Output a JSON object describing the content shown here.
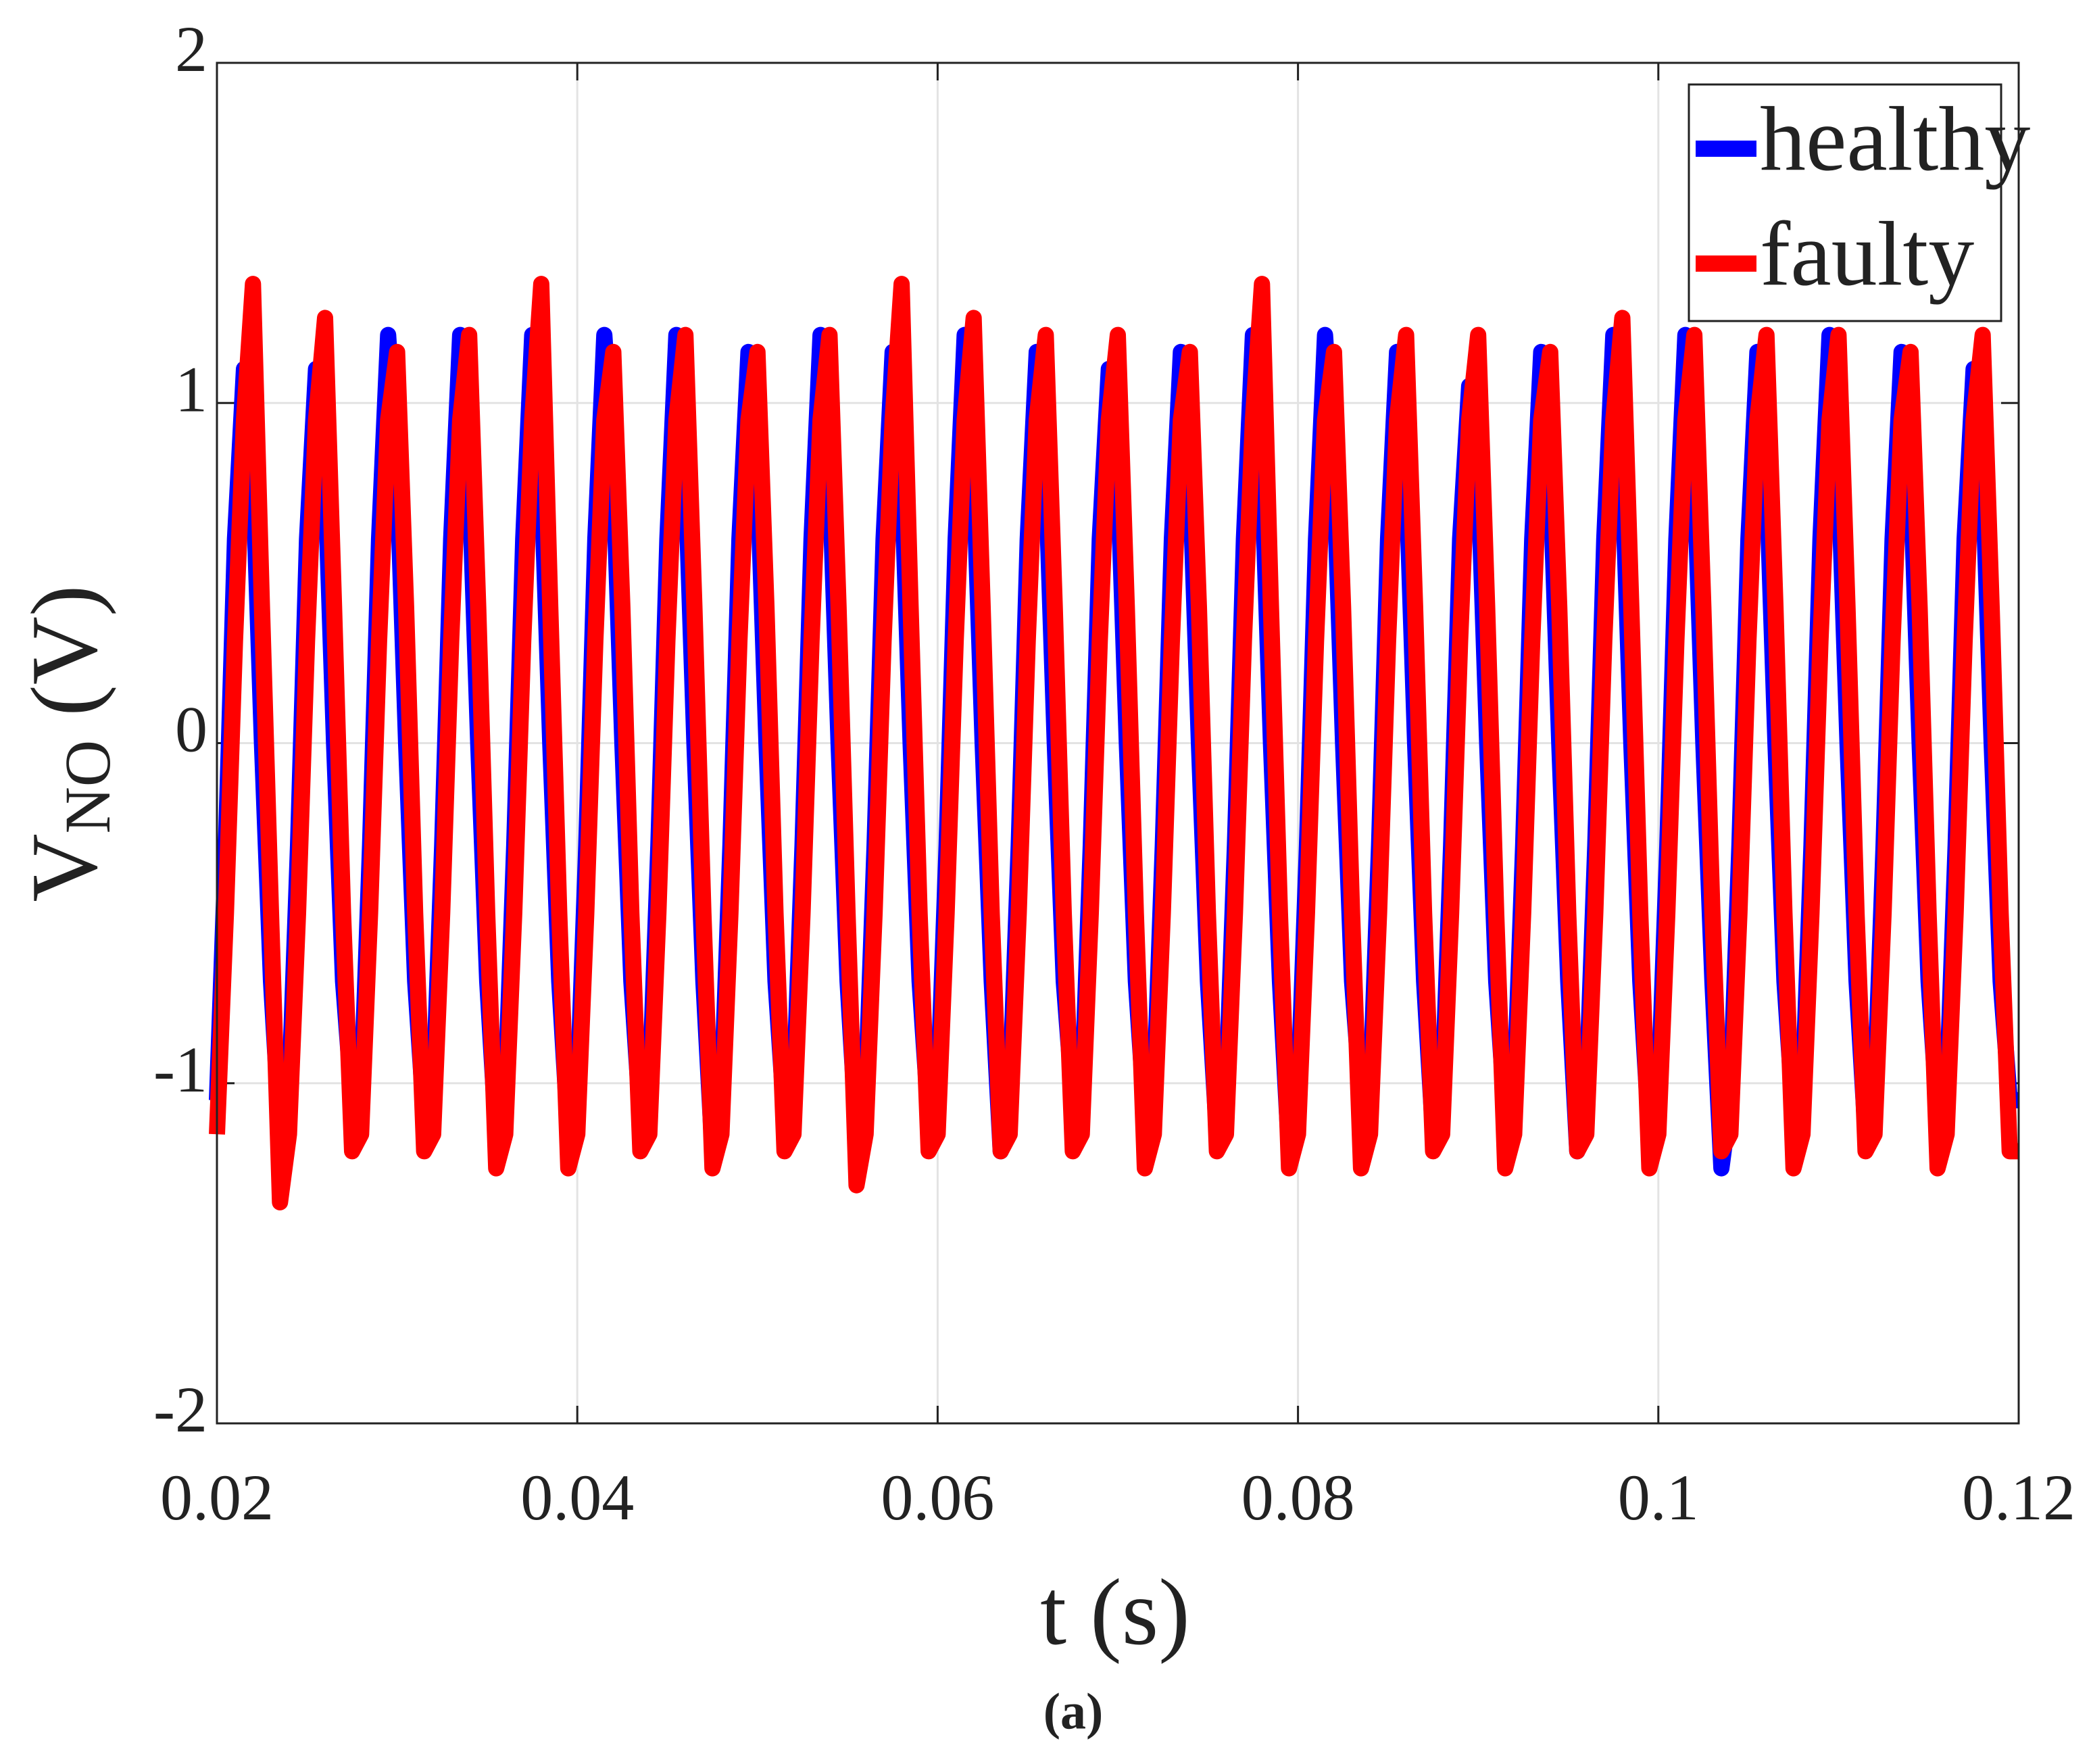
{
  "chart_data": {
    "type": "line",
    "xlabel": "t (s)",
    "ylabel": [
      "V",
      "NO",
      " (V)"
    ],
    "caption": "(a)",
    "xlim": [
      0.02,
      0.12
    ],
    "xticks": [
      0.02,
      0.04,
      0.06,
      0.08,
      0.1,
      0.12
    ],
    "ylim": [
      -2,
      2
    ],
    "yticks": [
      -2,
      -1,
      0,
      1,
      2
    ],
    "grid": true,
    "legend": "upper right",
    "x": [
      0.02,
      0.0205,
      0.021,
      0.0215,
      0.022,
      0.0225,
      0.023,
      0.0235,
      0.024,
      0.0245,
      0.025,
      0.0255,
      0.026,
      0.0265,
      0.027,
      0.0275,
      0.028,
      0.0285,
      0.029,
      0.0295,
      0.03,
      0.0305,
      0.031,
      0.0315,
      0.032,
      0.0325,
      0.033,
      0.0335,
      0.034,
      0.0345,
      0.035,
      0.0355,
      0.036,
      0.0365,
      0.037,
      0.0375,
      0.038,
      0.0385,
      0.039,
      0.0395,
      0.04,
      0.0405,
      0.041,
      0.0415,
      0.042,
      0.0425,
      0.043,
      0.0435,
      0.044,
      0.0445,
      0.045,
      0.0455,
      0.046,
      0.0465,
      0.047,
      0.0475,
      0.048,
      0.0485,
      0.049,
      0.0495,
      0.05,
      0.0505,
      0.051,
      0.0515,
      0.052,
      0.0525,
      0.053,
      0.0535,
      0.054,
      0.0545,
      0.055,
      0.0555,
      0.056,
      0.0565,
      0.057,
      0.0575,
      0.058,
      0.0585,
      0.059,
      0.0595,
      0.06,
      0.0605,
      0.061,
      0.0615,
      0.062,
      0.0625,
      0.063,
      0.0635,
      0.064,
      0.0645,
      0.065,
      0.0655,
      0.066,
      0.0665,
      0.067,
      0.0675,
      0.068,
      0.0685,
      0.069,
      0.0695,
      0.07,
      0.0705,
      0.071,
      0.0715,
      0.072,
      0.0725,
      0.073,
      0.0735,
      0.074,
      0.0745,
      0.075,
      0.0755,
      0.076,
      0.0765,
      0.077,
      0.0775,
      0.078,
      0.0785,
      0.079,
      0.0795,
      0.08,
      0.0805,
      0.081,
      0.0815,
      0.082,
      0.0825,
      0.083,
      0.0835,
      0.084,
      0.0845,
      0.085,
      0.0855,
      0.086,
      0.0865,
      0.087,
      0.0875,
      0.088,
      0.0885,
      0.089,
      0.0895,
      0.09,
      0.0905,
      0.091,
      0.0915,
      0.092,
      0.0925,
      0.093,
      0.0935,
      0.094,
      0.0945,
      0.095,
      0.0955,
      0.096,
      0.0965,
      0.097,
      0.0975,
      0.098,
      0.0985,
      0.099,
      0.0995,
      0.1,
      0.1005,
      0.101,
      0.1015,
      0.102,
      0.1025,
      0.103,
      0.1035,
      0.104,
      0.1045,
      0.105,
      0.1055,
      0.106,
      0.1065,
      0.107,
      0.1075,
      0.108,
      0.1085,
      0.109,
      0.1095,
      0.11,
      0.1105,
      0.111,
      0.1115,
      0.112,
      0.1125,
      0.113,
      0.1135,
      0.114,
      0.1145,
      0.115,
      0.1155,
      0.116,
      0.1165,
      0.117,
      0.1175,
      0.118,
      0.1185,
      0.119,
      0.1195,
      0.12
    ],
    "series": [
      {
        "name": "healthy",
        "color": "#0000ff",
        "values": [
          -1.05,
          -0.3,
          0.6,
          1.1,
          0.8,
          0,
          -0.7,
          -1.15,
          -1.05,
          -0.3,
          0.6,
          1.1,
          0.8,
          0,
          -0.7,
          -1.05,
          -1.05,
          -0.3,
          0.6,
          1.2,
          0.8,
          0,
          -0.7,
          -1.1,
          -1.05,
          -0.3,
          0.6,
          1.2,
          0.8,
          0,
          -0.7,
          -1.15,
          -1.05,
          -0.3,
          0.6,
          1.2,
          0.8,
          0,
          -0.7,
          -1.15,
          -1.05,
          -0.3,
          0.6,
          1.2,
          0.8,
          0,
          -0.7,
          -1.1,
          -1.05,
          -0.3,
          0.6,
          1.2,
          0.8,
          0,
          -0.7,
          -1.2,
          -1.05,
          -0.3,
          0.6,
          1.15,
          0.8,
          0,
          -0.7,
          -1.1,
          -1.05,
          -0.3,
          0.6,
          1.2,
          0.8,
          0,
          -0.7,
          -1.15,
          -1.05,
          -0.3,
          0.6,
          1.15,
          0.8,
          0,
          -0.7,
          -1.1,
          -1.05,
          -0.3,
          0.6,
          1.2,
          0.8,
          0,
          -0.7,
          -1.2,
          -1.05,
          -0.3,
          0.6,
          1.15,
          0.8,
          0,
          -0.7,
          -1.05,
          -1.05,
          -0.3,
          0.6,
          1.1,
          0.8,
          0,
          -0.7,
          -1.1,
          -1.05,
          -0.3,
          0.6,
          1.15,
          0.8,
          0,
          -0.7,
          -1.15,
          -1.05,
          -0.3,
          0.6,
          1.2,
          0.8,
          0,
          -0.7,
          -1.2,
          -1.05,
          -0.3,
          0.6,
          1.2,
          0.8,
          0,
          -0.7,
          -1.05,
          -1.05,
          -0.3,
          0.6,
          1.15,
          0.8,
          0,
          -0.7,
          -1.15,
          -1.05,
          -0.3,
          0.6,
          1.05,
          0.8,
          0,
          -0.7,
          -1.1,
          -1.05,
          -0.3,
          0.6,
          1.15,
          0.8,
          0,
          -0.7,
          -1.2,
          -1.05,
          -0.3,
          0.6,
          1.2,
          0.8,
          0,
          -0.7,
          -1.15,
          -1.05,
          -0.3,
          0.6,
          1.2,
          0.8,
          0,
          -0.7,
          -1.25,
          -1.05,
          -0.3,
          0.6,
          1.15,
          0.8,
          0,
          -0.7,
          -1.1,
          -1.05,
          -0.3,
          0.6,
          1.2,
          0.8,
          0,
          -0.7,
          -1.15,
          -1.05,
          -0.3,
          0.6,
          1.15,
          0.8,
          0,
          -0.7,
          -1.1,
          -1.05,
          -0.3,
          0.6,
          1.1,
          0.8,
          0,
          -0.7,
          -1.05,
          -1.05
        ]
      },
      {
        "name": "faulty",
        "color": "#ff0000",
        "values": [
          -1.15,
          -0.5,
          0.3,
          0.95,
          1.35,
          0.4,
          -0.5,
          -1.35,
          -1.15,
          -0.5,
          0.3,
          0.95,
          1.25,
          0.4,
          -0.5,
          -1.2,
          -1.15,
          -0.5,
          0.3,
          0.95,
          1.15,
          0.4,
          -0.5,
          -1.2,
          -1.15,
          -0.5,
          0.3,
          0.95,
          1.2,
          0.4,
          -0.5,
          -1.25,
          -1.15,
          -0.5,
          0.3,
          0.95,
          1.35,
          0.4,
          -0.5,
          -1.25,
          -1.15,
          -0.5,
          0.3,
          0.95,
          1.15,
          0.4,
          -0.5,
          -1.2,
          -1.15,
          -0.5,
          0.3,
          0.95,
          1.2,
          0.4,
          -0.5,
          -1.25,
          -1.15,
          -0.5,
          0.3,
          0.95,
          1.15,
          0.4,
          -0.5,
          -1.2,
          -1.15,
          -0.5,
          0.3,
          0.95,
          1.2,
          0.4,
          -0.5,
          -1.3,
          -1.15,
          -0.5,
          0.3,
          0.95,
          1.35,
          0.4,
          -0.5,
          -1.2,
          -1.15,
          -0.5,
          0.3,
          0.95,
          1.25,
          0.4,
          -0.5,
          -1.2,
          -1.15,
          -0.5,
          0.3,
          0.95,
          1.2,
          0.4,
          -0.5,
          -1.2,
          -1.15,
          -0.5,
          0.3,
          0.95,
          1.2,
          0.4,
          -0.5,
          -1.25,
          -1.15,
          -0.5,
          0.3,
          0.95,
          1.15,
          0.4,
          -0.5,
          -1.2,
          -1.15,
          -0.5,
          0.3,
          0.95,
          1.35,
          0.4,
          -0.5,
          -1.25,
          -1.15,
          -0.5,
          0.3,
          0.95,
          1.15,
          0.4,
          -0.5,
          -1.25,
          -1.15,
          -0.5,
          0.3,
          0.95,
          1.2,
          0.4,
          -0.5,
          -1.2,
          -1.15,
          -0.5,
          0.3,
          0.95,
          1.2,
          0.4,
          -0.5,
          -1.25,
          -1.15,
          -0.5,
          0.3,
          0.95,
          1.15,
          0.4,
          -0.5,
          -1.2,
          -1.15,
          -0.5,
          0.3,
          0.95,
          1.25,
          0.4,
          -0.5,
          -1.25,
          -1.15,
          -0.5,
          0.3,
          0.95,
          1.2,
          0.4,
          -0.5,
          -1.2,
          -1.15,
          -0.5,
          0.3,
          0.95,
          1.2,
          0.4,
          -0.5,
          -1.25,
          -1.15,
          -0.5,
          0.3,
          0.95,
          1.2,
          0.4,
          -0.5,
          -1.2,
          -1.15,
          -0.5,
          0.3,
          0.95,
          1.15,
          0.4,
          -0.5,
          -1.25,
          -1.15,
          -0.5,
          0.3,
          0.95,
          1.2,
          0.4,
          -0.5,
          -1.2,
          -1.2
        ]
      }
    ]
  }
}
